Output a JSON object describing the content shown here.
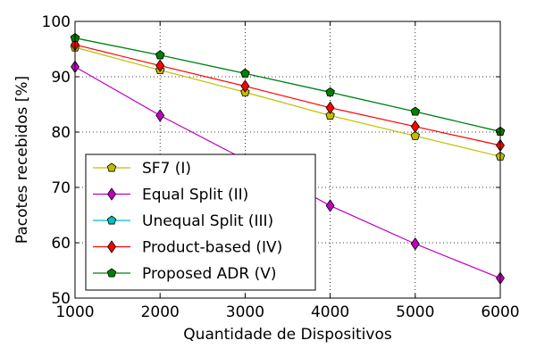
{
  "chart_data": {
    "type": "line",
    "xlabel": "Quantidade de Dispositivos",
    "ylabel": "Pacotes recebidos [%]",
    "xlim": [
      1000,
      6000
    ],
    "ylim": [
      50,
      100
    ],
    "x_ticks": [
      "1000",
      "2000",
      "3000",
      "4000",
      "5000",
      "6000"
    ],
    "y_ticks": [
      "50",
      "60",
      "70",
      "80",
      "90",
      "100"
    ],
    "grid": true,
    "legend_position": "bottom-left",
    "x": [
      1000,
      2000,
      3000,
      4000,
      5000,
      6000
    ],
    "series": [
      {
        "name": "SF7 (I)",
        "color": "#bfbf00",
        "marker": "pentagon",
        "values": [
          95.3,
          91.2,
          87.2,
          83.0,
          79.3,
          75.6
        ]
      },
      {
        "name": "Equal Split (II)",
        "color": "#bf00bf",
        "marker": "diamond",
        "values": [
          91.8,
          83.0,
          75.0,
          66.7,
          59.8,
          53.6
        ]
      },
      {
        "name": "Unequal Split (III)",
        "color": "#00bfbf",
        "marker": "pentagon",
        "values": [
          97.0,
          93.9,
          90.6,
          87.2,
          83.7,
          80.1
        ]
      },
      {
        "name": "Product-based (IV)",
        "color": "#ff0000",
        "marker": "diamond",
        "values": [
          95.8,
          92.0,
          88.3,
          84.4,
          81.0,
          77.6
        ]
      },
      {
        "name": "Proposed ADR (V)",
        "color": "#008000",
        "marker": "pentagon",
        "values": [
          97.0,
          93.9,
          90.6,
          87.2,
          83.7,
          80.1
        ]
      }
    ]
  }
}
